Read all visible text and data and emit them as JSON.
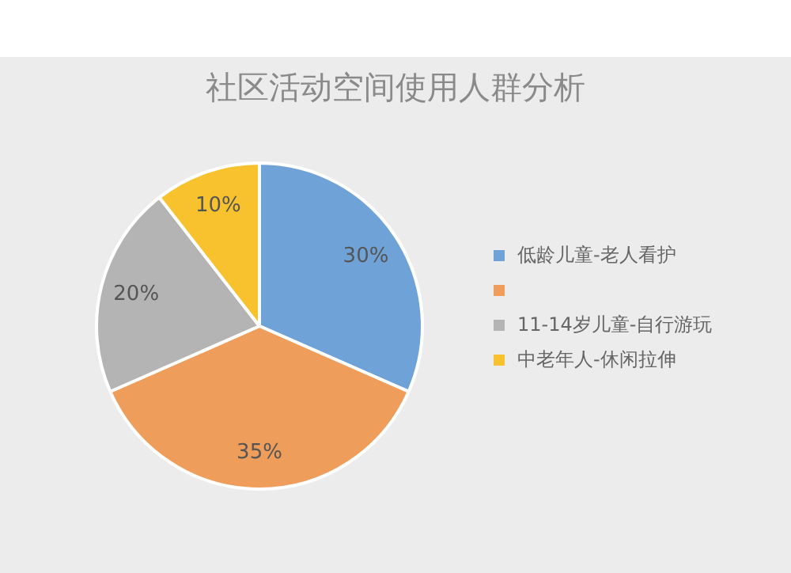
{
  "chart_data": {
    "type": "pie",
    "title": "社区活动空间使用人群分析",
    "categories": [
      "低龄儿童-老人看护",
      null,
      "11-14岁儿童-自行游玩",
      "中老年人-休闲拉伸"
    ],
    "values": [
      30,
      35,
      20,
      10
    ],
    "colors": [
      "#6fa3d8",
      "#ef9d5a",
      "#b4b4b4",
      "#f7c22e"
    ],
    "value_labels": [
      "30%",
      "35%",
      "20%",
      "10%"
    ],
    "legend": "right"
  }
}
